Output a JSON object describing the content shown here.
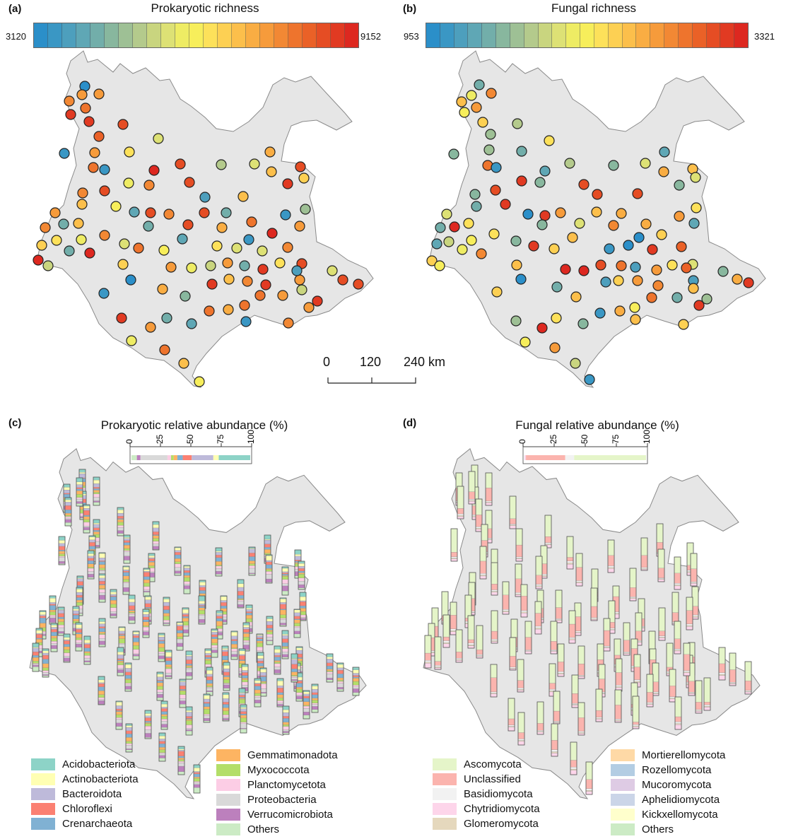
{
  "panels": {
    "a": {
      "letter": "(a)",
      "title": "Prokaryotic richness",
      "min_label": "3120",
      "max_label": "9152"
    },
    "b": {
      "letter": "(b)",
      "title": "Fungal richness",
      "min_label": "953",
      "max_label": "3321"
    },
    "c": {
      "letter": "(c)",
      "title": "Prokaryotic relative abundance (%)"
    },
    "d": {
      "letter": "(d)",
      "title": "Fungal relative abundance (%)"
    }
  },
  "scale_bar": {
    "ticks": [
      "0",
      "120",
      "240 km"
    ]
  },
  "colorscale": [
    "#2b8fc9",
    "#3a97c4",
    "#4d9fbd",
    "#5fa7b5",
    "#72aeaa",
    "#88b79e",
    "#9ec095",
    "#b4ca8c",
    "#c9d57f",
    "#dde175",
    "#eeec64",
    "#f7ee5b",
    "#fde15a",
    "#fdd053",
    "#fcbf4b",
    "#f9ad43",
    "#f69b3b",
    "#f28834",
    "#ee742d",
    "#ea6127",
    "#e54d24",
    "#e13a22",
    "#dd2820"
  ],
  "chart_data": [
    {
      "type": "map-points",
      "title": "Prokaryotic richness",
      "value_range": [
        3120,
        9152
      ],
      "site_count": 110
    },
    {
      "type": "map-points",
      "title": "Fungal richness",
      "value_range": [
        953,
        3321
      ],
      "site_count": 110
    },
    {
      "type": "bar",
      "title": "Prokaryotic relative abundance (%)",
      "key_axis_ticks": [
        "0",
        "25",
        "50",
        "75",
        "100"
      ],
      "legend": [
        {
          "name": "Acidobacteriota",
          "color": "#8dd3c7"
        },
        {
          "name": "Actinobacteriota",
          "color": "#ffffb3"
        },
        {
          "name": "Bacteroidota",
          "color": "#bebada"
        },
        {
          "name": "Chloroflexi",
          "color": "#fb8072"
        },
        {
          "name": "Crenarchaeota",
          "color": "#80b1d3"
        },
        {
          "name": "Gemmatimonadota",
          "color": "#fdb462"
        },
        {
          "name": "Myxococcota",
          "color": "#b3de69"
        },
        {
          "name": "Planctomycetota",
          "color": "#fccde5"
        },
        {
          "name": "Proteobacteria",
          "color": "#d9d9d9"
        },
        {
          "name": "Verrucomicrobiota",
          "color": "#bc80bd"
        },
        {
          "name": "Others",
          "color": "#ccebc5"
        }
      ]
    },
    {
      "type": "bar",
      "title": "Fungal relative abundance (%)",
      "key_axis_ticks": [
        "0",
        "25",
        "50",
        "75",
        "100"
      ],
      "legend": [
        {
          "name": "Ascomycota",
          "color": "#e5f5c9"
        },
        {
          "name": "Unclassified",
          "color": "#fbb4ae"
        },
        {
          "name": "Basidiomycota",
          "color": "#f2f2f2"
        },
        {
          "name": "Chytridiomycota",
          "color": "#fdd5ea"
        },
        {
          "name": "Glomeromycota",
          "color": "#e5d8bd"
        },
        {
          "name": "Mortierellomycota",
          "color": "#fed9a6"
        },
        {
          "name": "Rozellomycota",
          "color": "#b3cde3"
        },
        {
          "name": "Mucoromycota",
          "color": "#decbe4"
        },
        {
          "name": "Aphelidiomycota",
          "color": "#cbd5e8"
        },
        {
          "name": "Kickxellomycota",
          "color": "#ffffcc"
        },
        {
          "name": "Others",
          "color": "#ccebc5"
        }
      ]
    }
  ]
}
